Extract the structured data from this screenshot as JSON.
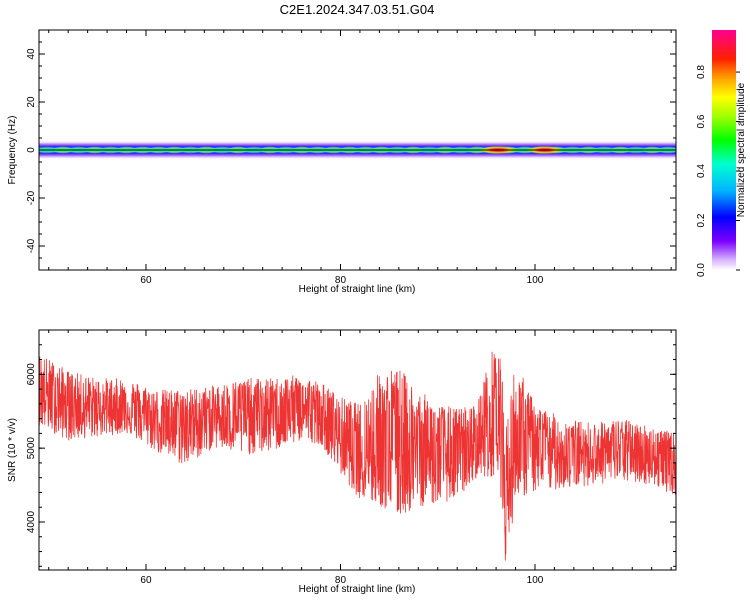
{
  "title": "C2E1.2024.347.03.51.G04",
  "chart_data": [
    {
      "type": "heatmap",
      "xlabel": "Height of straight line (km)",
      "ylabel": "Frequency (Hz)",
      "xlim": [
        49,
        114.5
      ],
      "ylim": [
        -50,
        50
      ],
      "xticks": [
        60,
        80,
        100
      ],
      "yticks": [
        -40,
        -20,
        0,
        20,
        40
      ],
      "colorbar": {
        "label": "Normalized spectral amplitude",
        "range": [
          0,
          0.97
        ],
        "ticks": [
          0.0,
          0.2,
          0.4,
          0.6,
          0.8
        ],
        "tick_labels": [
          "0.0",
          "0.2",
          "0.4",
          "0.6",
          "0.8"
        ],
        "colormap": "rainbow"
      },
      "band": {
        "center_frequency": 0,
        "half_width": 3,
        "peaks": [
          {
            "x": 96.2,
            "amplitude": 0.9
          },
          {
            "x": 101.0,
            "amplitude": 0.85
          }
        ]
      }
    },
    {
      "type": "line",
      "xlabel": "Height of straight line (km)",
      "ylabel": "SNR (10 * v/v)",
      "xlim": [
        49,
        114.5
      ],
      "ylim": [
        3350,
        6600
      ],
      "xticks": [
        60,
        80,
        100
      ],
      "yticks": [
        4000,
        5000,
        6000
      ],
      "color": "#ee3333",
      "envelope": [
        {
          "x": 49,
          "upper": 6300,
          "lower": 5300,
          "mean": 5750
        },
        {
          "x": 52,
          "upper": 6050,
          "lower": 5100,
          "mean": 5600
        },
        {
          "x": 55,
          "upper": 5950,
          "lower": 5150,
          "mean": 5550
        },
        {
          "x": 58,
          "upper": 5950,
          "lower": 5200,
          "mean": 5550
        },
        {
          "x": 61,
          "upper": 5800,
          "lower": 4950,
          "mean": 5400
        },
        {
          "x": 64,
          "upper": 5800,
          "lower": 4750,
          "mean": 5350
        },
        {
          "x": 67,
          "upper": 5850,
          "lower": 5000,
          "mean": 5450
        },
        {
          "x": 70,
          "upper": 5950,
          "lower": 4900,
          "mean": 5450
        },
        {
          "x": 73,
          "upper": 5950,
          "lower": 4950,
          "mean": 5500
        },
        {
          "x": 76,
          "upper": 6000,
          "lower": 5100,
          "mean": 5550
        },
        {
          "x": 78,
          "upper": 5900,
          "lower": 5050,
          "mean": 5400
        },
        {
          "x": 80,
          "upper": 5700,
          "lower": 4650,
          "mean": 5150
        },
        {
          "x": 82,
          "upper": 5600,
          "lower": 4300,
          "mean": 4950
        },
        {
          "x": 84,
          "upper": 6050,
          "lower": 4200,
          "mean": 5050
        },
        {
          "x": 86,
          "upper": 6100,
          "lower": 4050,
          "mean": 5100
        },
        {
          "x": 88,
          "upper": 5800,
          "lower": 4200,
          "mean": 5000
        },
        {
          "x": 90,
          "upper": 5600,
          "lower": 4250,
          "mean": 4900
        },
        {
          "x": 92,
          "upper": 5550,
          "lower": 4300,
          "mean": 4900
        },
        {
          "x": 94,
          "upper": 5600,
          "lower": 4600,
          "mean": 5050
        },
        {
          "x": 95.5,
          "upper": 6300,
          "lower": 4600,
          "mean": 5400
        },
        {
          "x": 96.3,
          "upper": 6500,
          "lower": 4700,
          "mean": 5700
        },
        {
          "x": 97,
          "upper": 5300,
          "lower": 3350,
          "mean": 4300
        },
        {
          "x": 98,
          "upper": 6200,
          "lower": 4300,
          "mean": 5100
        },
        {
          "x": 100,
          "upper": 5600,
          "lower": 4400,
          "mean": 5050
        },
        {
          "x": 103,
          "upper": 5400,
          "lower": 4450,
          "mean": 4950
        },
        {
          "x": 106,
          "upper": 5350,
          "lower": 4500,
          "mean": 4950
        },
        {
          "x": 109,
          "upper": 5400,
          "lower": 4550,
          "mean": 5000
        },
        {
          "x": 112,
          "upper": 5300,
          "lower": 4500,
          "mean": 4900
        },
        {
          "x": 114.5,
          "upper": 5200,
          "lower": 4350,
          "mean": 4800
        }
      ]
    }
  ]
}
